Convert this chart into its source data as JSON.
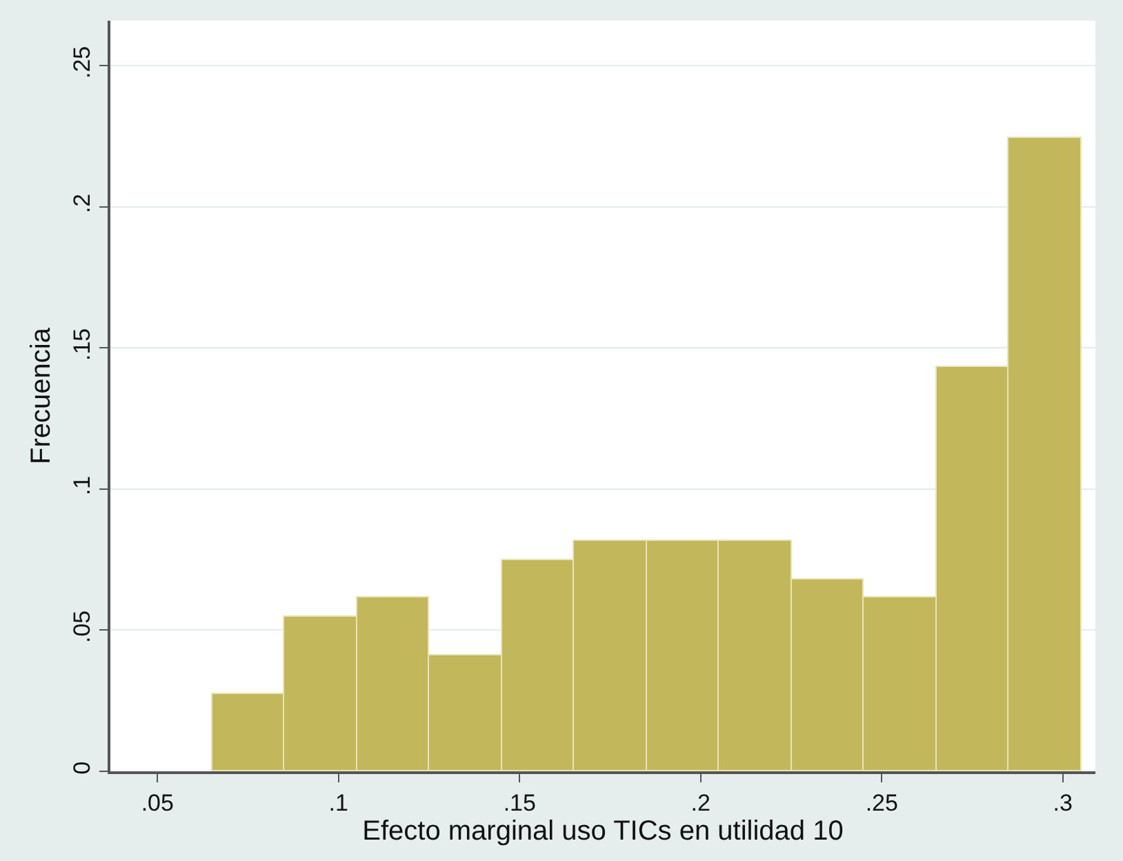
{
  "chart_data": {
    "type": "histogram",
    "xlabel": "Efecto marginal uso TICs en utilidad 10",
    "ylabel": "Frecuencia",
    "bins": [
      0.065,
      0.085,
      0.105,
      0.125,
      0.145,
      0.165,
      0.185,
      0.205,
      0.225,
      0.245,
      0.265,
      0.285,
      0.305
    ],
    "values": [
      0.0273,
      0.0547,
      0.0616,
      0.0413,
      0.0746,
      0.0815,
      0.0815,
      0.0815,
      0.068,
      0.0616,
      0.1431,
      0.2242
    ],
    "color": "#c3b75c",
    "xlim": [
      0.037,
      0.309
    ],
    "xticks": [
      {
        "value": 0.05,
        "label": ".05"
      },
      {
        "value": 0.1,
        "label": ".1"
      },
      {
        "value": 0.15,
        "label": ".15"
      },
      {
        "value": 0.2,
        "label": ".2"
      },
      {
        "value": 0.25,
        "label": ".25"
      },
      {
        "value": 0.3,
        "label": ".3"
      }
    ],
    "ylim": [
      0,
      0.266
    ],
    "yticks": [
      0,
      {
        "value": 0.05,
        "label": ".05"
      },
      {
        "value": 0.1,
        "label": ".1"
      },
      {
        "value": 0.15,
        "label": ".15"
      },
      {
        "value": 0.2,
        "label": ".2"
      },
      {
        "value": 0.25,
        "label": ".25"
      }
    ],
    "grid": "y",
    "legend": false
  }
}
